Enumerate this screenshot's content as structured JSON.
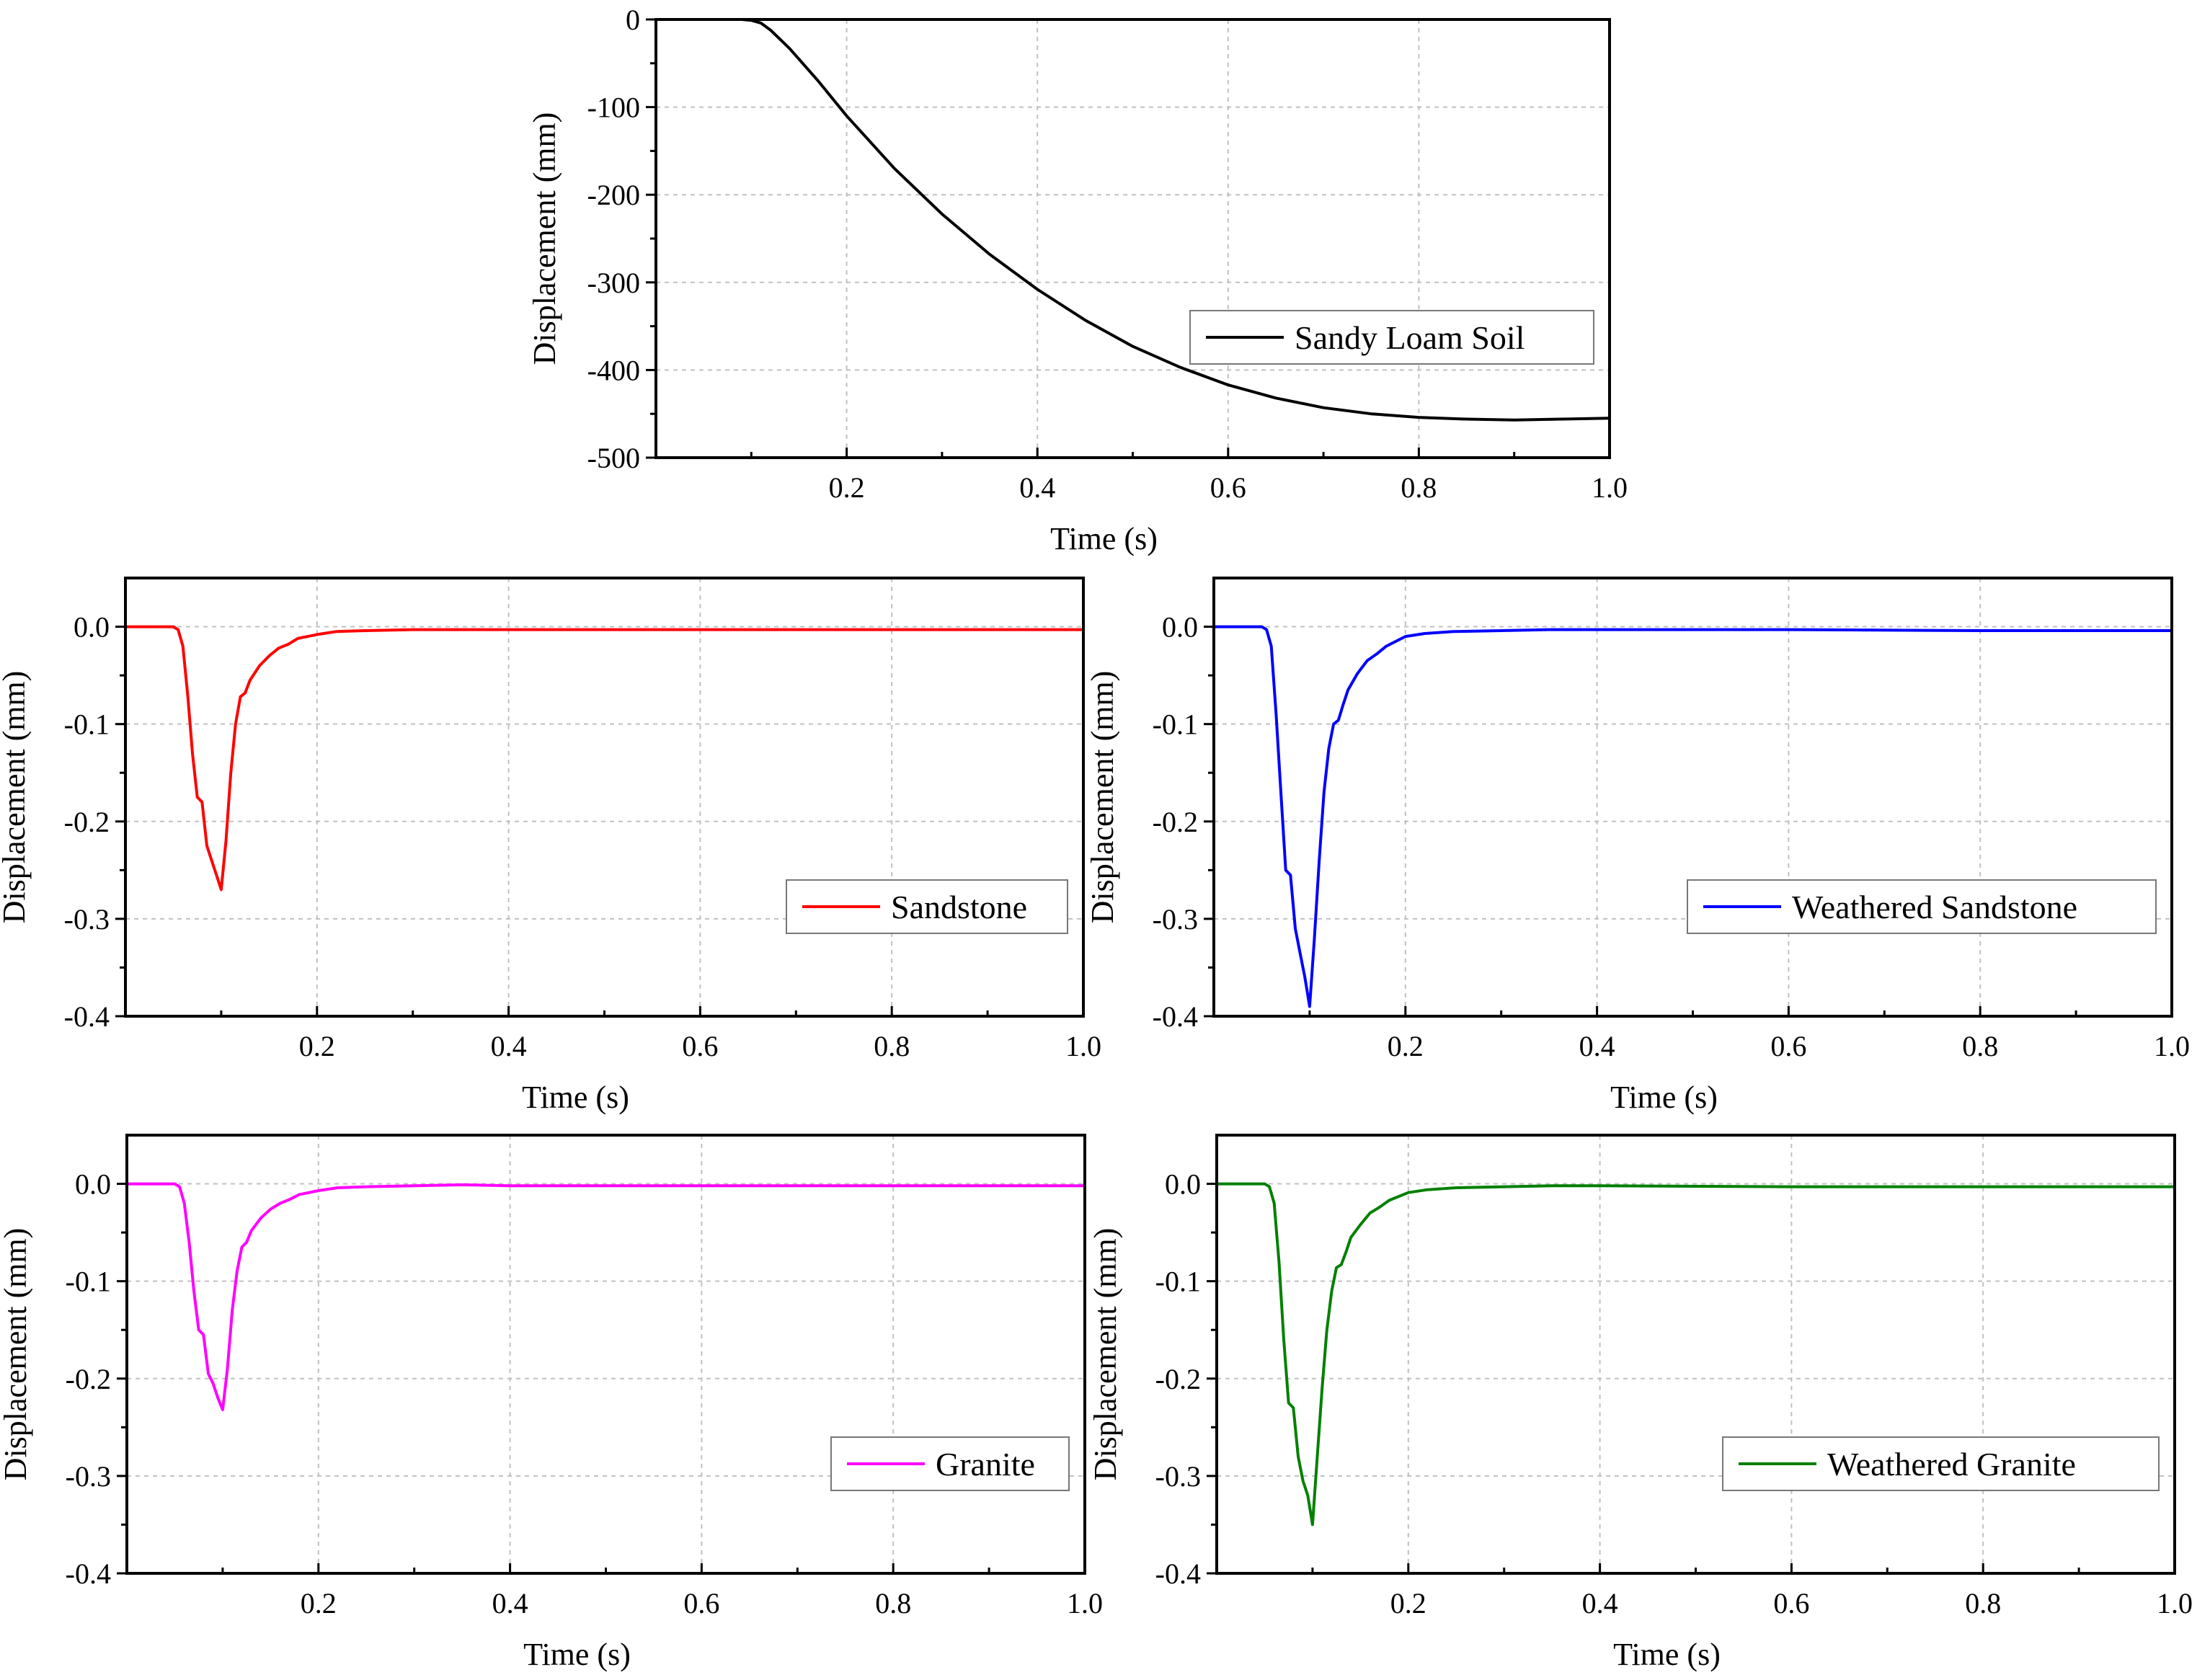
{
  "chart_data": [
    {
      "id": "sandy-loam",
      "type": "line",
      "xlabel": "Time (s)",
      "ylabel": "Displacement (mm)",
      "xlim": [
        0,
        1.0
      ],
      "ylim": [
        -500,
        0
      ],
      "xticks": [
        0.2,
        0.4,
        0.6,
        0.8,
        1.0
      ],
      "xtick_labels": [
        "0.2",
        "0.4",
        "0.6",
        "0.8",
        "1.0"
      ],
      "yticks": [
        0,
        -100,
        -200,
        -300,
        -400,
        -500
      ],
      "ytick_labels": [
        "0",
        "-100",
        "-200",
        "-300",
        "-400",
        "-500"
      ],
      "grid": true,
      "legend_position": "bottom-right",
      "series": [
        {
          "name": "Sandy Loam Soil",
          "color": "#000000",
          "x": [
            0,
            0.05,
            0.09,
            0.1,
            0.11,
            0.12,
            0.14,
            0.17,
            0.2,
            0.25,
            0.3,
            0.35,
            0.4,
            0.45,
            0.5,
            0.55,
            0.6,
            0.65,
            0.7,
            0.75,
            0.8,
            0.85,
            0.9,
            0.95,
            1.0
          ],
          "y": [
            0,
            0,
            0,
            -1,
            -4,
            -12,
            -33,
            -70,
            -110,
            -170,
            -222,
            -268,
            -308,
            -343,
            -373,
            -397,
            -417,
            -432,
            -443,
            -450,
            -454,
            -456,
            -457,
            -456,
            -455
          ]
        }
      ]
    },
    {
      "id": "sandstone",
      "type": "line",
      "xlabel": "Time (s)",
      "ylabel": "Displacement (mm)",
      "xlim": [
        0,
        1.0
      ],
      "ylim": [
        -0.4,
        0.05
      ],
      "xticks": [
        0.2,
        0.4,
        0.6,
        0.8,
        1.0
      ],
      "xtick_labels": [
        "0.2",
        "0.4",
        "0.6",
        "0.8",
        "1.0"
      ],
      "yticks": [
        0.0,
        -0.1,
        -0.2,
        -0.3,
        -0.4
      ],
      "ytick_labels": [
        "0.0",
        "-0.1",
        "-0.2",
        "-0.3",
        "-0.4"
      ],
      "grid": true,
      "legend_position": "bottom-right",
      "series": [
        {
          "name": "Sandstone",
          "color": "#ff0000",
          "x": [
            0,
            0.05,
            0.055,
            0.06,
            0.065,
            0.07,
            0.075,
            0.08,
            0.085,
            0.09,
            0.095,
            0.1,
            0.105,
            0.11,
            0.115,
            0.12,
            0.125,
            0.13,
            0.14,
            0.15,
            0.16,
            0.17,
            0.18,
            0.2,
            0.22,
            0.25,
            0.3,
            0.4,
            0.6,
            0.8,
            1.0
          ],
          "y": [
            0,
            0,
            -0.003,
            -0.02,
            -0.07,
            -0.13,
            -0.175,
            -0.18,
            -0.225,
            -0.24,
            -0.255,
            -0.27,
            -0.22,
            -0.15,
            -0.1,
            -0.072,
            -0.068,
            -0.055,
            -0.04,
            -0.03,
            -0.022,
            -0.018,
            -0.012,
            -0.008,
            -0.005,
            -0.004,
            -0.003,
            -0.003,
            -0.003,
            -0.003,
            -0.003
          ]
        }
      ]
    },
    {
      "id": "weathered-sandstone",
      "type": "line",
      "xlabel": "Time (s)",
      "ylabel": "Displacement (mm)",
      "xlim": [
        0,
        1.0
      ],
      "ylim": [
        -0.4,
        0.05
      ],
      "xticks": [
        0.2,
        0.4,
        0.6,
        0.8,
        1.0
      ],
      "xtick_labels": [
        "0.2",
        "0.4",
        "0.6",
        "0.8",
        "1.0"
      ],
      "yticks": [
        0.0,
        -0.1,
        -0.2,
        -0.3,
        -0.4
      ],
      "ytick_labels": [
        "0.0",
        "-0.1",
        "-0.2",
        "-0.3",
        "-0.4"
      ],
      "grid": true,
      "legend_position": "bottom-right",
      "series": [
        {
          "name": "Weathered Sandstone",
          "color": "#0000ff",
          "x": [
            0,
            0.05,
            0.055,
            0.06,
            0.065,
            0.07,
            0.075,
            0.08,
            0.085,
            0.09,
            0.095,
            0.1,
            0.105,
            0.11,
            0.115,
            0.12,
            0.125,
            0.13,
            0.135,
            0.14,
            0.15,
            0.16,
            0.17,
            0.18,
            0.2,
            0.22,
            0.25,
            0.3,
            0.35,
            0.4,
            0.6,
            0.8,
            1.0
          ],
          "y": [
            0,
            0,
            -0.003,
            -0.02,
            -0.09,
            -0.17,
            -0.25,
            -0.255,
            -0.31,
            -0.335,
            -0.36,
            -0.39,
            -0.32,
            -0.24,
            -0.17,
            -0.125,
            -0.1,
            -0.096,
            -0.08,
            -0.065,
            -0.048,
            -0.035,
            -0.028,
            -0.02,
            -0.01,
            -0.007,
            -0.005,
            -0.004,
            -0.003,
            -0.003,
            -0.003,
            -0.004,
            -0.004
          ]
        }
      ]
    },
    {
      "id": "granite",
      "type": "line",
      "xlabel": "Time (s)",
      "ylabel": "Displacement (mm)",
      "xlim": [
        0,
        1.0
      ],
      "ylim": [
        -0.4,
        0.05
      ],
      "xticks": [
        0.2,
        0.4,
        0.6,
        0.8,
        1.0
      ],
      "xtick_labels": [
        "0.2",
        "0.4",
        "0.6",
        "0.8",
        "1.0"
      ],
      "yticks": [
        0.0,
        -0.1,
        -0.2,
        -0.3,
        -0.4
      ],
      "ytick_labels": [
        "0.0",
        "-0.1",
        "-0.2",
        "-0.3",
        "-0.4"
      ],
      "grid": true,
      "legend_position": "bottom-right",
      "series": [
        {
          "name": "Granite",
          "color": "#ff00ff",
          "x": [
            0,
            0.05,
            0.055,
            0.06,
            0.065,
            0.07,
            0.075,
            0.08,
            0.085,
            0.09,
            0.095,
            0.1,
            0.105,
            0.11,
            0.115,
            0.12,
            0.125,
            0.13,
            0.14,
            0.15,
            0.16,
            0.17,
            0.18,
            0.2,
            0.22,
            0.25,
            0.3,
            0.35,
            0.4,
            0.6,
            0.8,
            1.0
          ],
          "y": [
            0,
            0,
            -0.003,
            -0.02,
            -0.06,
            -0.11,
            -0.15,
            -0.155,
            -0.195,
            -0.205,
            -0.22,
            -0.232,
            -0.19,
            -0.13,
            -0.09,
            -0.065,
            -0.06,
            -0.048,
            -0.035,
            -0.026,
            -0.02,
            -0.016,
            -0.011,
            -0.007,
            -0.004,
            -0.003,
            -0.002,
            -0.001,
            -0.002,
            -0.002,
            -0.002,
            -0.002
          ]
        }
      ]
    },
    {
      "id": "weathered-granite",
      "type": "line",
      "xlabel": "Time (s)",
      "ylabel": "Displacement (mm)",
      "xlim": [
        0,
        1.0
      ],
      "ylim": [
        -0.4,
        0.05
      ],
      "xticks": [
        0.2,
        0.4,
        0.6,
        0.8,
        1.0
      ],
      "xtick_labels": [
        "0.2",
        "0.4",
        "0.6",
        "0.8",
        "1.0"
      ],
      "yticks": [
        0.0,
        -0.1,
        -0.2,
        -0.3,
        -0.4
      ],
      "ytick_labels": [
        "0.0",
        "-0.1",
        "-0.2",
        "-0.3",
        "-0.4"
      ],
      "grid": true,
      "legend_position": "bottom-right",
      "series": [
        {
          "name": "Weathered Granite",
          "color": "#008000",
          "x": [
            0,
            0.05,
            0.055,
            0.06,
            0.065,
            0.07,
            0.075,
            0.08,
            0.085,
            0.09,
            0.095,
            0.1,
            0.105,
            0.11,
            0.115,
            0.12,
            0.125,
            0.13,
            0.135,
            0.14,
            0.15,
            0.16,
            0.17,
            0.18,
            0.2,
            0.22,
            0.25,
            0.3,
            0.35,
            0.4,
            0.6,
            0.8,
            1.0
          ],
          "y": [
            0,
            0,
            -0.003,
            -0.02,
            -0.08,
            -0.16,
            -0.225,
            -0.23,
            -0.28,
            -0.305,
            -0.32,
            -0.35,
            -0.28,
            -0.21,
            -0.15,
            -0.11,
            -0.086,
            -0.083,
            -0.07,
            -0.055,
            -0.042,
            -0.03,
            -0.024,
            -0.017,
            -0.009,
            -0.006,
            -0.004,
            -0.003,
            -0.002,
            -0.002,
            -0.003,
            -0.003,
            -0.003
          ]
        }
      ]
    }
  ]
}
